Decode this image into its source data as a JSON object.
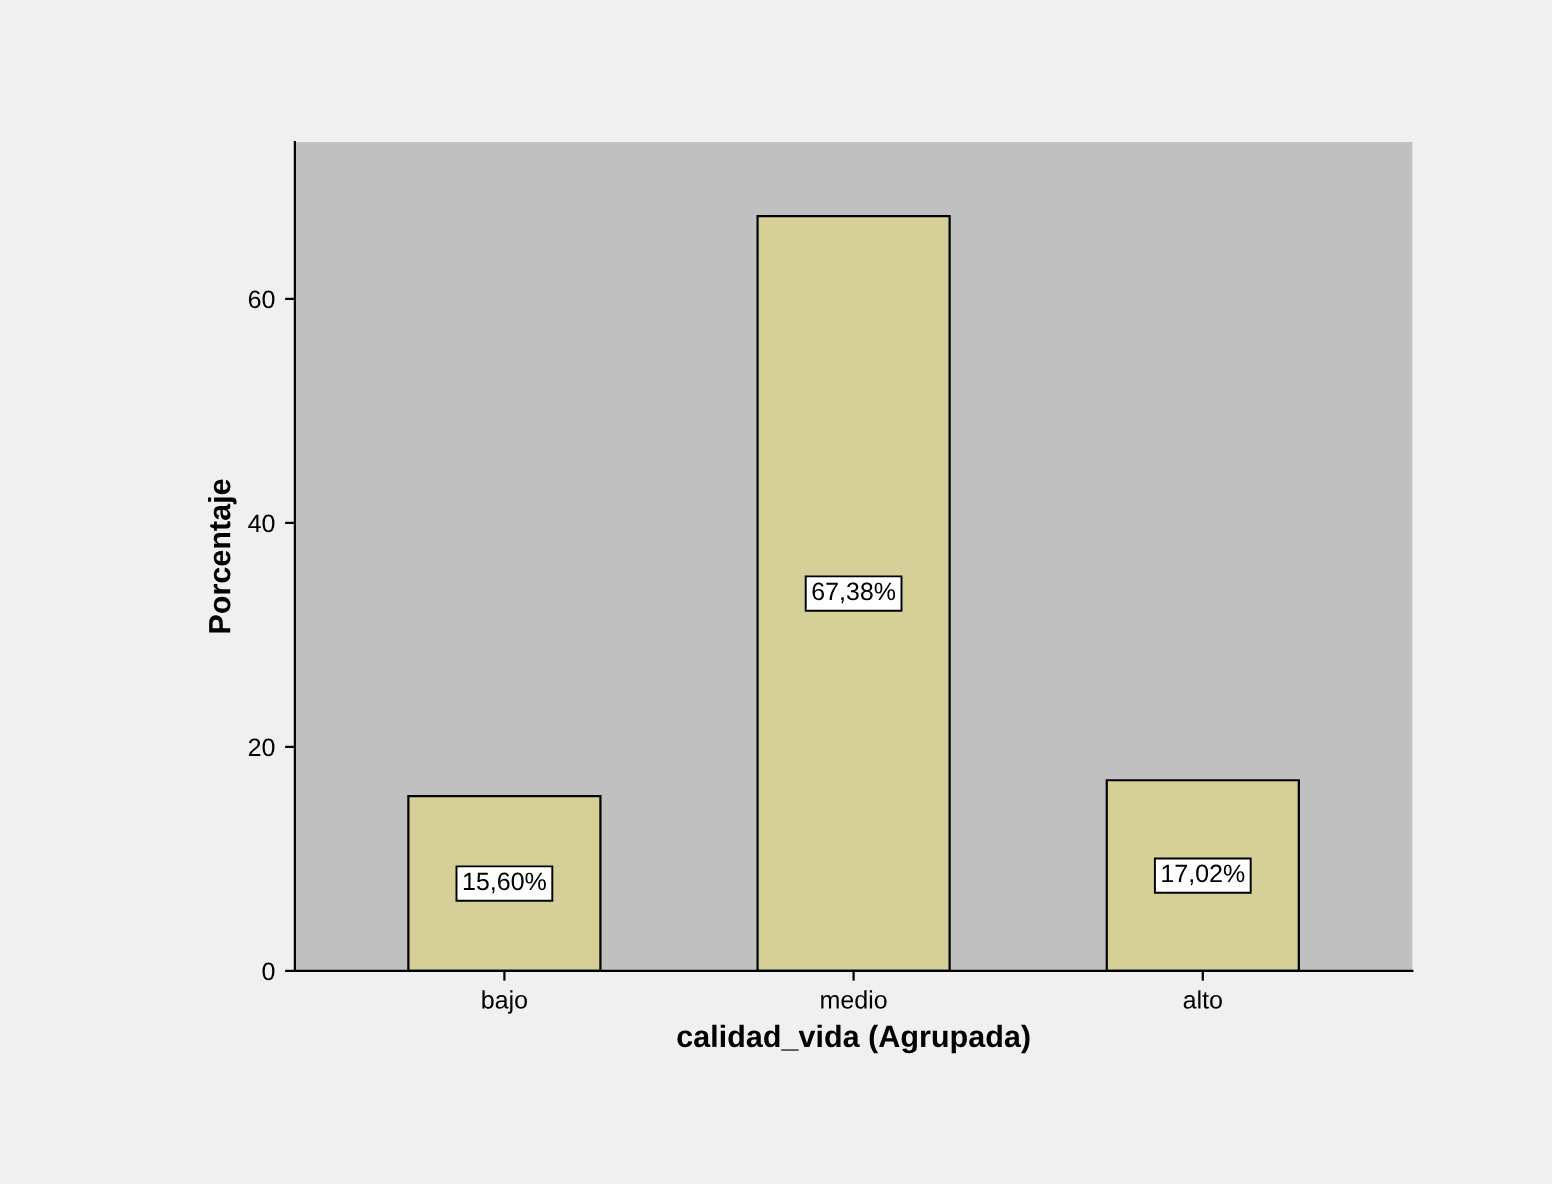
{
  "chart_data": {
    "type": "bar",
    "xlabel": "calidad_vida (Agrupada)",
    "ylabel": "Porcentaje",
    "categories": [
      "bajo",
      "medio",
      "alto"
    ],
    "values": [
      15.6,
      67.38,
      17.02
    ],
    "value_labels": [
      "15,60%",
      "67,38%",
      "17,02%"
    ],
    "color": "#d5cf98",
    "ylim": [
      0,
      74
    ],
    "yticks": [
      0,
      20,
      40,
      60
    ],
    "grid": false
  }
}
